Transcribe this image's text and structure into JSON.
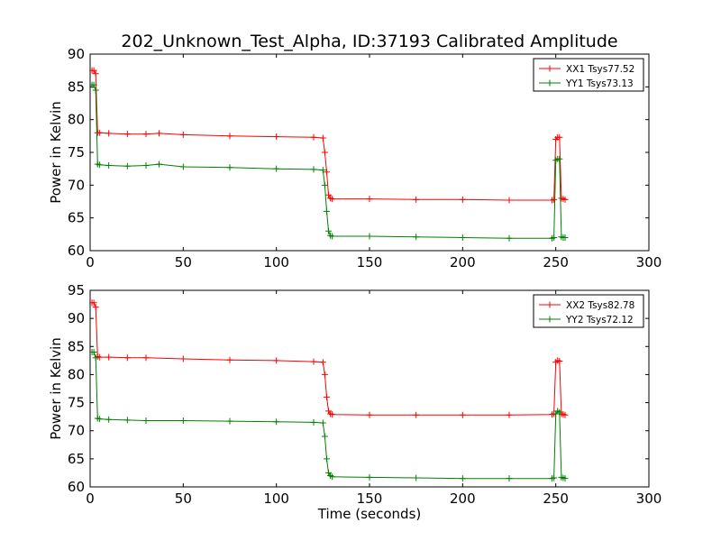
{
  "figure": {
    "title": "202_Unknown_Test_Alpha, ID:37193 Calibrated Amplitude"
  },
  "colors": {
    "xx": "#ff0000",
    "yy": "#008000"
  },
  "chart_data": [
    {
      "type": "line",
      "title": "202_Unknown_Test_Alpha, ID:37193 Calibrated Amplitude",
      "xlabel": "",
      "ylabel": "Power in Kelvin",
      "xlim": [
        0,
        300
      ],
      "ylim": [
        60,
        90
      ],
      "xticks": [
        0,
        50,
        100,
        150,
        200,
        250,
        300
      ],
      "yticks": [
        60,
        65,
        70,
        75,
        80,
        85,
        90
      ],
      "grid": false,
      "legend": "top-right",
      "marker": "plus",
      "series": [
        {
          "name": "XX1 Tsys77.52",
          "color": "#ff0000",
          "x": [
            1,
            2,
            3,
            4,
            5,
            10,
            20,
            30,
            37,
            50,
            75,
            100,
            120,
            125,
            126,
            127,
            128,
            129,
            130,
            150,
            175,
            200,
            225,
            248,
            249,
            250,
            251,
            252,
            253,
            254,
            255
          ],
          "y": [
            87.5,
            87.5,
            87.0,
            78.0,
            78.0,
            77.9,
            77.8,
            77.8,
            77.9,
            77.7,
            77.5,
            77.4,
            77.3,
            77.2,
            75.0,
            72.0,
            68.5,
            68.0,
            67.9,
            67.9,
            67.8,
            67.8,
            67.7,
            67.7,
            67.8,
            77.0,
            77.3,
            77.3,
            68.0,
            67.9,
            67.8
          ]
        },
        {
          "name": "YY1 Tsys73.13",
          "color": "#008000",
          "x": [
            1,
            2,
            3,
            4,
            5,
            10,
            20,
            30,
            37,
            50,
            75,
            100,
            120,
            125,
            126,
            127,
            128,
            129,
            130,
            150,
            175,
            200,
            225,
            248,
            249,
            250,
            251,
            252,
            253,
            254,
            255
          ],
          "y": [
            85.3,
            85.3,
            84.5,
            73.2,
            73.1,
            73.0,
            72.9,
            73.0,
            73.2,
            72.8,
            72.7,
            72.5,
            72.4,
            72.3,
            70.0,
            66.0,
            63.0,
            62.3,
            62.2,
            62.2,
            62.1,
            62.0,
            61.9,
            61.9,
            62.0,
            73.8,
            74.0,
            74.0,
            62.1,
            62.0,
            62.0
          ]
        }
      ]
    },
    {
      "type": "line",
      "title": "",
      "xlabel": "Time (seconds)",
      "ylabel": "Power in Kelvin",
      "xlim": [
        0,
        300
      ],
      "ylim": [
        60,
        95
      ],
      "xticks": [
        0,
        50,
        100,
        150,
        200,
        250,
        300
      ],
      "yticks": [
        60,
        65,
        70,
        75,
        80,
        85,
        90,
        95
      ],
      "grid": false,
      "legend": "top-right",
      "marker": "plus",
      "series": [
        {
          "name": "XX2 Tsys82.78",
          "color": "#ff0000",
          "x": [
            1,
            2,
            3,
            4,
            5,
            10,
            20,
            30,
            50,
            75,
            100,
            120,
            125,
            126,
            127,
            128,
            129,
            130,
            150,
            175,
            200,
            225,
            248,
            249,
            250,
            251,
            252,
            253,
            254,
            255
          ],
          "y": [
            92.8,
            92.8,
            92.0,
            83.2,
            83.1,
            83.1,
            83.0,
            83.0,
            82.8,
            82.6,
            82.5,
            82.3,
            82.2,
            80.0,
            76.0,
            73.5,
            73.0,
            72.9,
            72.8,
            72.8,
            72.8,
            72.8,
            72.9,
            73.0,
            82.2,
            82.5,
            82.4,
            73.0,
            72.9,
            72.8
          ]
        },
        {
          "name": "YY2 Tsys72.12",
          "color": "#008000",
          "x": [
            1,
            2,
            3,
            4,
            5,
            10,
            20,
            30,
            50,
            75,
            100,
            120,
            125,
            126,
            127,
            128,
            129,
            130,
            150,
            175,
            200,
            225,
            248,
            249,
            250,
            251,
            252,
            253,
            254,
            255
          ],
          "y": [
            84.0,
            84.0,
            83.0,
            72.2,
            72.1,
            72.0,
            71.9,
            71.8,
            71.8,
            71.7,
            71.6,
            71.5,
            71.4,
            69.0,
            65.0,
            62.5,
            62.0,
            61.8,
            61.7,
            61.6,
            61.5,
            61.5,
            61.5,
            61.6,
            73.0,
            73.5,
            73.3,
            61.7,
            61.6,
            61.5
          ]
        }
      ]
    }
  ]
}
